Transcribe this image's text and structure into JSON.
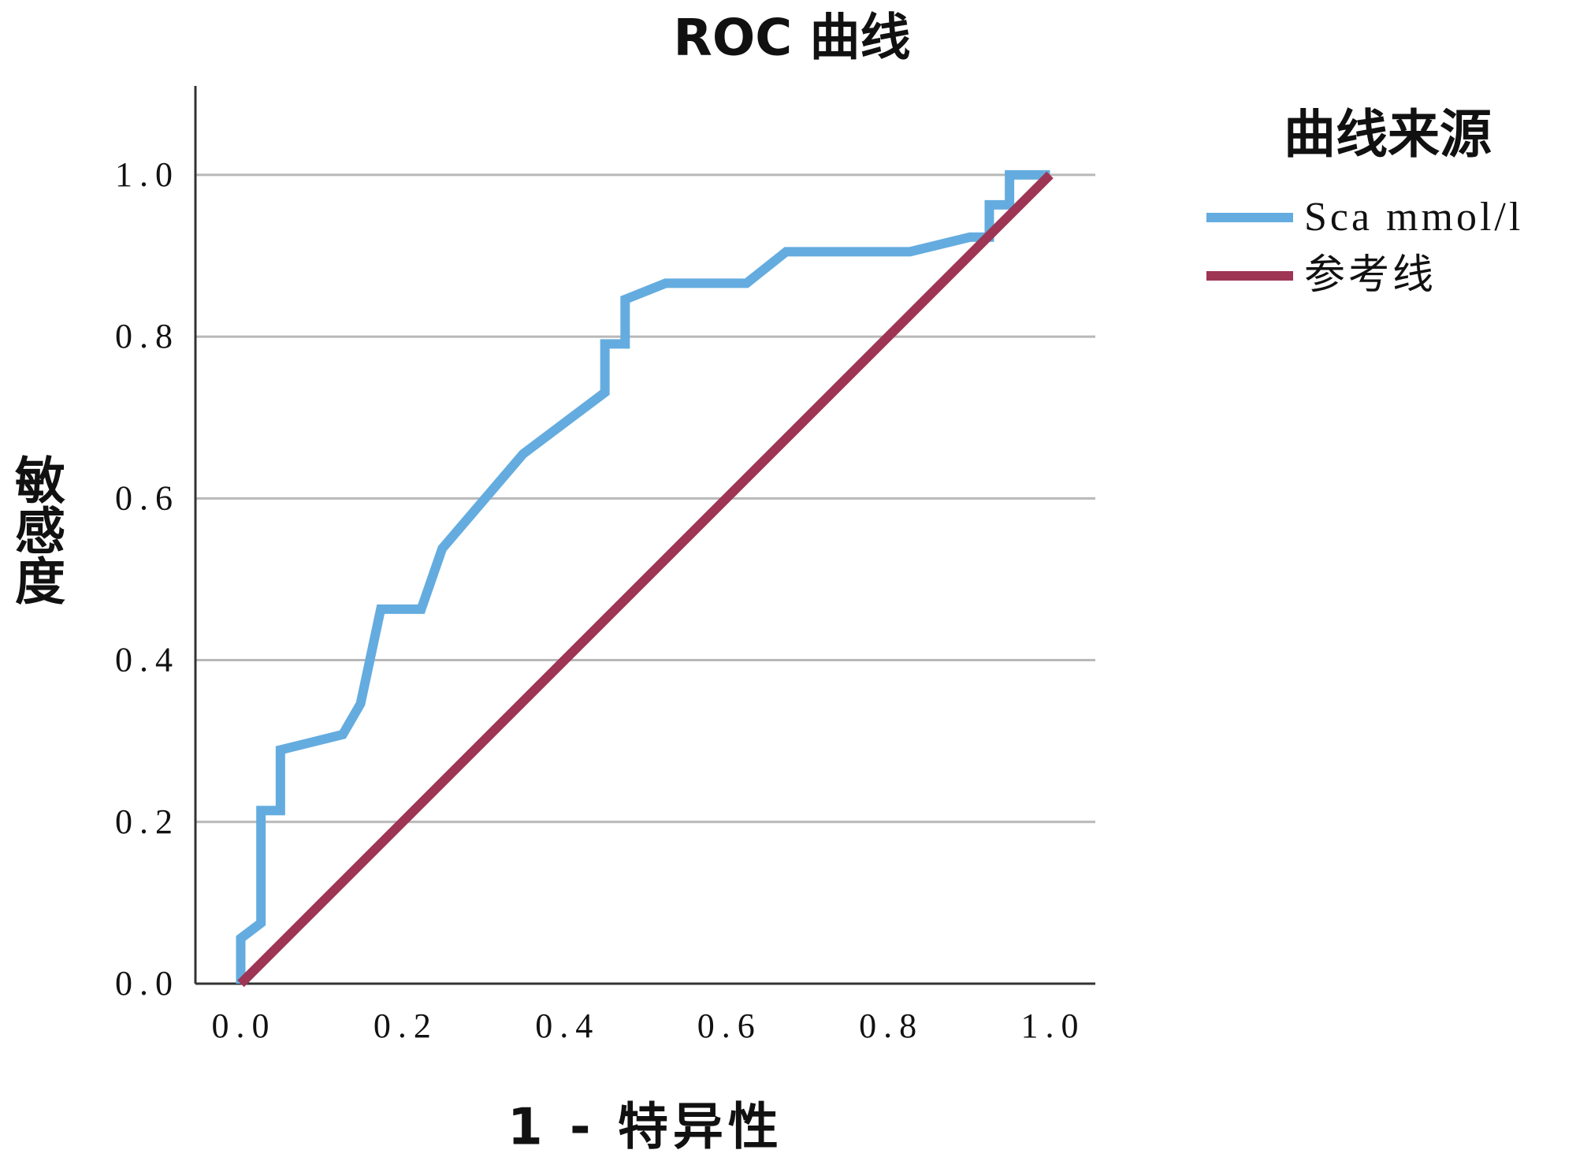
{
  "chart_data": {
    "type": "line",
    "title": "ROC 曲线",
    "x_label": "1 - 特异性",
    "y_label": "敏感度",
    "legend_title": "曲线来源",
    "legend_position": "right",
    "grid": true,
    "xlim": [
      -0.056,
      1.056
    ],
    "ylim": [
      0,
      1.11
    ],
    "xticks": [
      {
        "value": 0,
        "label": "0.0"
      },
      0.2,
      0.4,
      0.6,
      0.8,
      {
        "value": 1,
        "label": "1.0"
      }
    ],
    "yticks": [
      {
        "value": 0,
        "label": "0.0"
      },
      0.2,
      0.4,
      0.6,
      0.8,
      {
        "value": 1,
        "label": "1.0"
      }
    ],
    "series": [
      {
        "name": "Sca mmol/l",
        "color": "#64acdf",
        "x": [
          0,
          0,
          0.025,
          0.025,
          0.049,
          0.049,
          0.126,
          0.148,
          0.173,
          0.223,
          0.249,
          0.349,
          0.45,
          0.45,
          0.475,
          0.475,
          0.525,
          0.625,
          0.674,
          0.827,
          0.901,
          0.925,
          0.925,
          0.95,
          0.95,
          1
        ],
        "values": [
          0,
          0.056,
          0.075,
          0.214,
          0.214,
          0.289,
          0.308,
          0.346,
          0.463,
          0.463,
          0.538,
          0.655,
          0.731,
          0.791,
          0.791,
          0.846,
          0.866,
          0.866,
          0.905,
          0.905,
          0.923,
          0.923,
          0.963,
          0.963,
          1,
          1
        ]
      },
      {
        "name": "参考线",
        "color": "#9e3555",
        "x": [
          0,
          1
        ],
        "values": [
          0,
          1
        ]
      }
    ]
  }
}
